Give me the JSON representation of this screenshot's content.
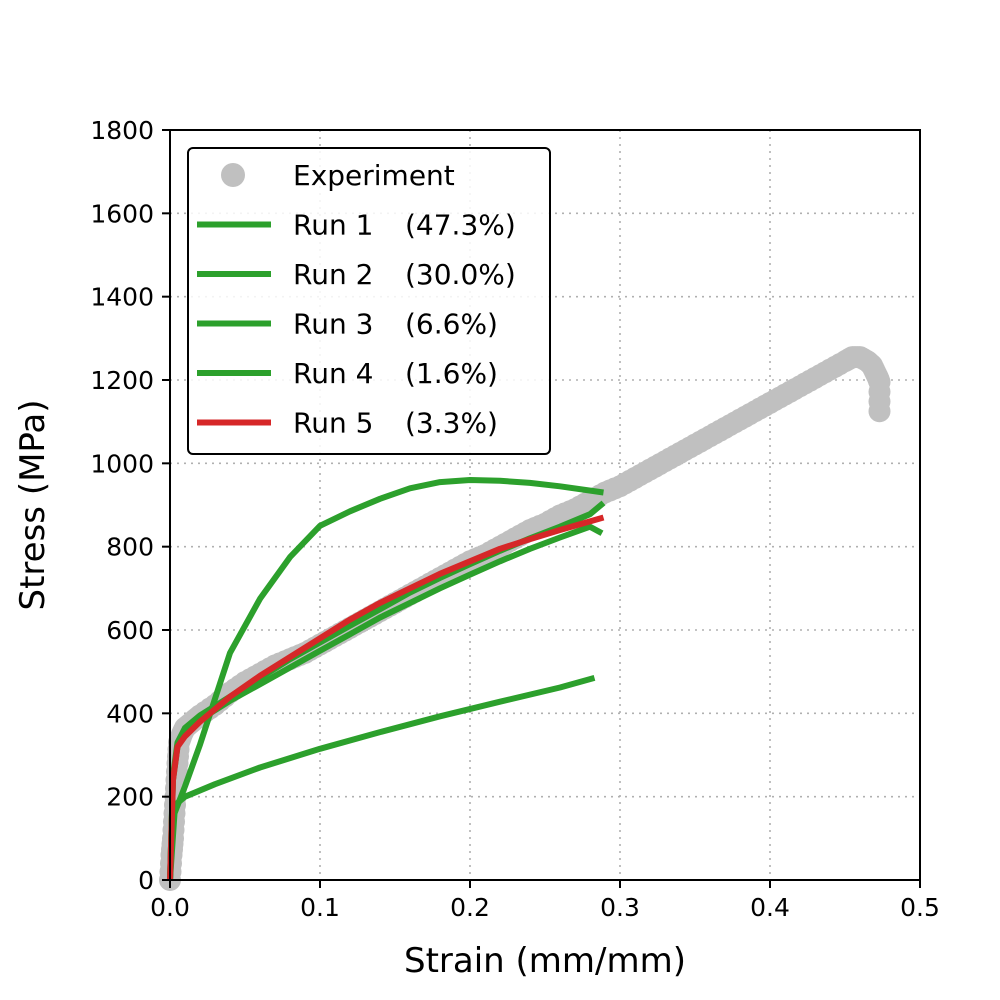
{
  "chart_data": {
    "type": "line",
    "title": "",
    "xlabel": "Strain (mm/mm)",
    "ylabel": "Stress (MPa)",
    "xlim": [
      0.0,
      0.5
    ],
    "ylim": [
      0,
      1800
    ],
    "xticks": [
      0.0,
      0.1,
      0.2,
      0.3,
      0.4,
      0.5
    ],
    "xtick_labels": [
      "0.0",
      "0.1",
      "0.2",
      "0.3",
      "0.4",
      "0.5"
    ],
    "yticks": [
      0,
      200,
      400,
      600,
      800,
      1000,
      1200,
      1400,
      1600,
      1800
    ],
    "ytick_labels": [
      "0",
      "200",
      "400",
      "600",
      "800",
      "1000",
      "1200",
      "1400",
      "1600",
      "1800"
    ],
    "grid": true,
    "legend_position": "top-left",
    "series": [
      {
        "name": "Experiment",
        "type": "scatter",
        "color": "#c0c0c0",
        "points": [
          [
            0.0,
            0
          ],
          [
            0.001,
            60
          ],
          [
            0.002,
            100
          ],
          [
            0.003,
            160
          ],
          [
            0.004,
            220
          ],
          [
            0.005,
            280
          ],
          [
            0.006,
            330
          ],
          [
            0.008,
            350
          ],
          [
            0.01,
            365
          ],
          [
            0.015,
            380
          ],
          [
            0.02,
            395
          ],
          [
            0.03,
            420
          ],
          [
            0.04,
            450
          ],
          [
            0.05,
            475
          ],
          [
            0.06,
            495
          ],
          [
            0.07,
            515
          ],
          [
            0.08,
            530
          ],
          [
            0.09,
            545
          ],
          [
            0.1,
            565
          ],
          [
            0.11,
            585
          ],
          [
            0.12,
            605
          ],
          [
            0.13,
            625
          ],
          [
            0.14,
            645
          ],
          [
            0.15,
            665
          ],
          [
            0.16,
            685
          ],
          [
            0.17,
            705
          ],
          [
            0.18,
            725
          ],
          [
            0.19,
            745
          ],
          [
            0.2,
            765
          ],
          [
            0.21,
            780
          ],
          [
            0.22,
            800
          ],
          [
            0.23,
            820
          ],
          [
            0.24,
            840
          ],
          [
            0.25,
            855
          ],
          [
            0.26,
            875
          ],
          [
            0.27,
            890
          ],
          [
            0.28,
            910
          ],
          [
            0.29,
            930
          ],
          [
            0.3,
            945
          ],
          [
            0.31,
            965
          ],
          [
            0.32,
            985
          ],
          [
            0.33,
            1005
          ],
          [
            0.34,
            1025
          ],
          [
            0.35,
            1045
          ],
          [
            0.36,
            1065
          ],
          [
            0.37,
            1085
          ],
          [
            0.38,
            1105
          ],
          [
            0.39,
            1125
          ],
          [
            0.4,
            1145
          ],
          [
            0.41,
            1165
          ],
          [
            0.42,
            1185
          ],
          [
            0.43,
            1205
          ],
          [
            0.44,
            1225
          ],
          [
            0.45,
            1245
          ],
          [
            0.455,
            1255
          ],
          [
            0.46,
            1255
          ],
          [
            0.465,
            1245
          ],
          [
            0.468,
            1235
          ],
          [
            0.47,
            1220
          ],
          [
            0.472,
            1205
          ],
          [
            0.473,
            1195
          ],
          [
            0.473,
            1125
          ]
        ]
      },
      {
        "name": "Run 1",
        "pct": "(47.3%)",
        "color": "#2ca02c",
        "points": [
          [
            0.0,
            0
          ],
          [
            0.002,
            250
          ],
          [
            0.005,
            330
          ],
          [
            0.01,
            365
          ],
          [
            0.02,
            395
          ],
          [
            0.04,
            440
          ],
          [
            0.06,
            485
          ],
          [
            0.08,
            530
          ],
          [
            0.1,
            570
          ],
          [
            0.12,
            610
          ],
          [
            0.14,
            650
          ],
          [
            0.16,
            690
          ],
          [
            0.18,
            725
          ],
          [
            0.2,
            758
          ],
          [
            0.22,
            790
          ],
          [
            0.24,
            820
          ],
          [
            0.26,
            848
          ],
          [
            0.28,
            878
          ],
          [
            0.289,
            905
          ]
        ]
      },
      {
        "name": "Run 2",
        "pct": "(30.0%)",
        "color": "#2ca02c",
        "points": [
          [
            0.0,
            0
          ],
          [
            0.002,
            240
          ],
          [
            0.005,
            320
          ],
          [
            0.01,
            355
          ],
          [
            0.02,
            385
          ],
          [
            0.04,
            430
          ],
          [
            0.06,
            470
          ],
          [
            0.08,
            510
          ],
          [
            0.1,
            550
          ],
          [
            0.12,
            590
          ],
          [
            0.14,
            630
          ],
          [
            0.16,
            665
          ],
          [
            0.18,
            700
          ],
          [
            0.2,
            733
          ],
          [
            0.22,
            765
          ],
          [
            0.24,
            795
          ],
          [
            0.26,
            822
          ],
          [
            0.28,
            848
          ],
          [
            0.288,
            832
          ]
        ]
      },
      {
        "name": "Run 3",
        "pct": "(6.6%)",
        "color": "#2ca02c",
        "points": [
          [
            0.0,
            0
          ],
          [
            0.003,
            160
          ],
          [
            0.01,
            225
          ],
          [
            0.02,
            325
          ],
          [
            0.04,
            545
          ],
          [
            0.06,
            675
          ],
          [
            0.08,
            775
          ],
          [
            0.1,
            850
          ],
          [
            0.12,
            885
          ],
          [
            0.14,
            915
          ],
          [
            0.16,
            940
          ],
          [
            0.18,
            955
          ],
          [
            0.2,
            960
          ],
          [
            0.22,
            958
          ],
          [
            0.24,
            953
          ],
          [
            0.26,
            945
          ],
          [
            0.289,
            930
          ]
        ]
      },
      {
        "name": "Run 4",
        "pct": "(1.6%)",
        "color": "#2ca02c",
        "points": [
          [
            0.0,
            0
          ],
          [
            0.002,
            150
          ],
          [
            0.005,
            185
          ],
          [
            0.01,
            200
          ],
          [
            0.03,
            230
          ],
          [
            0.06,
            270
          ],
          [
            0.1,
            315
          ],
          [
            0.14,
            355
          ],
          [
            0.18,
            393
          ],
          [
            0.22,
            428
          ],
          [
            0.26,
            462
          ],
          [
            0.283,
            485
          ]
        ]
      },
      {
        "name": "Run 5",
        "pct": "(3.3%)",
        "color": "#d62728",
        "points": [
          [
            0.0,
            0
          ],
          [
            0.002,
            240
          ],
          [
            0.005,
            320
          ],
          [
            0.01,
            345
          ],
          [
            0.02,
            380
          ],
          [
            0.04,
            440
          ],
          [
            0.06,
            490
          ],
          [
            0.08,
            535
          ],
          [
            0.1,
            580
          ],
          [
            0.12,
            625
          ],
          [
            0.14,
            665
          ],
          [
            0.16,
            700
          ],
          [
            0.18,
            735
          ],
          [
            0.2,
            765
          ],
          [
            0.22,
            795
          ],
          [
            0.24,
            818
          ],
          [
            0.26,
            840
          ],
          [
            0.289,
            870
          ]
        ]
      }
    ]
  }
}
